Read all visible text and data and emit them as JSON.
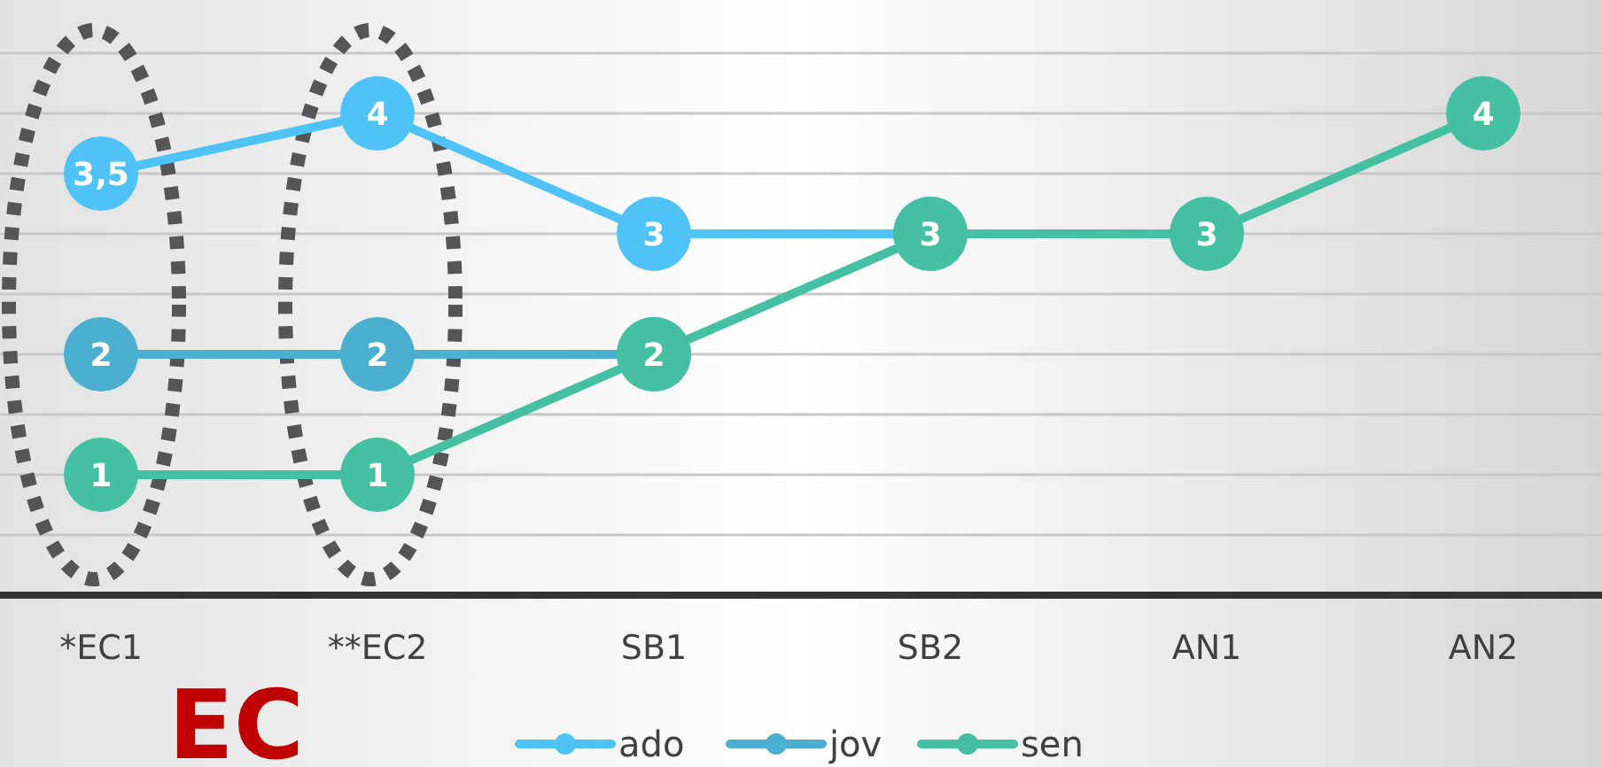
{
  "chart_data": {
    "type": "line",
    "categories": [
      "*EC1",
      "**EC2",
      "SB1",
      "SB2",
      "AN1",
      "AN2"
    ],
    "series": [
      {
        "name": "ado",
        "color": "#4fc3f7",
        "values": [
          3.5,
          4,
          3,
          3,
          null,
          null
        ],
        "value_labels": [
          "3,5",
          "4",
          "3",
          null,
          null,
          null
        ]
      },
      {
        "name": "jov",
        "color": "#4bafd0",
        "values": [
          2,
          2,
          2,
          null,
          null,
          null
        ],
        "value_labels": [
          "2",
          "2",
          null,
          null,
          null,
          null
        ]
      },
      {
        "name": "sen",
        "color": "#45c1a1",
        "values": [
          1,
          1,
          2,
          3,
          3,
          4
        ],
        "value_labels": [
          "1",
          "1",
          "2",
          "3",
          "3",
          "4"
        ]
      }
    ],
    "ylim": [
      0,
      4.5
    ],
    "yticks": [
      {
        "value": 0.5,
        "label": null
      },
      {
        "value": 1,
        "label": null
      },
      {
        "value": 1.5,
        "label": null
      },
      {
        "value": 2,
        "label": null
      },
      {
        "value": 2.5,
        "label": null
      },
      {
        "value": 3,
        "label": null
      },
      {
        "value": 3.5,
        "label": null
      },
      {
        "value": 4,
        "label": null
      },
      {
        "value": 4.5,
        "label": null
      }
    ],
    "grid": "y",
    "legend": "bottom",
    "marker": "circle",
    "line_style": "solid",
    "annotations": [
      "EC"
    ]
  }
}
